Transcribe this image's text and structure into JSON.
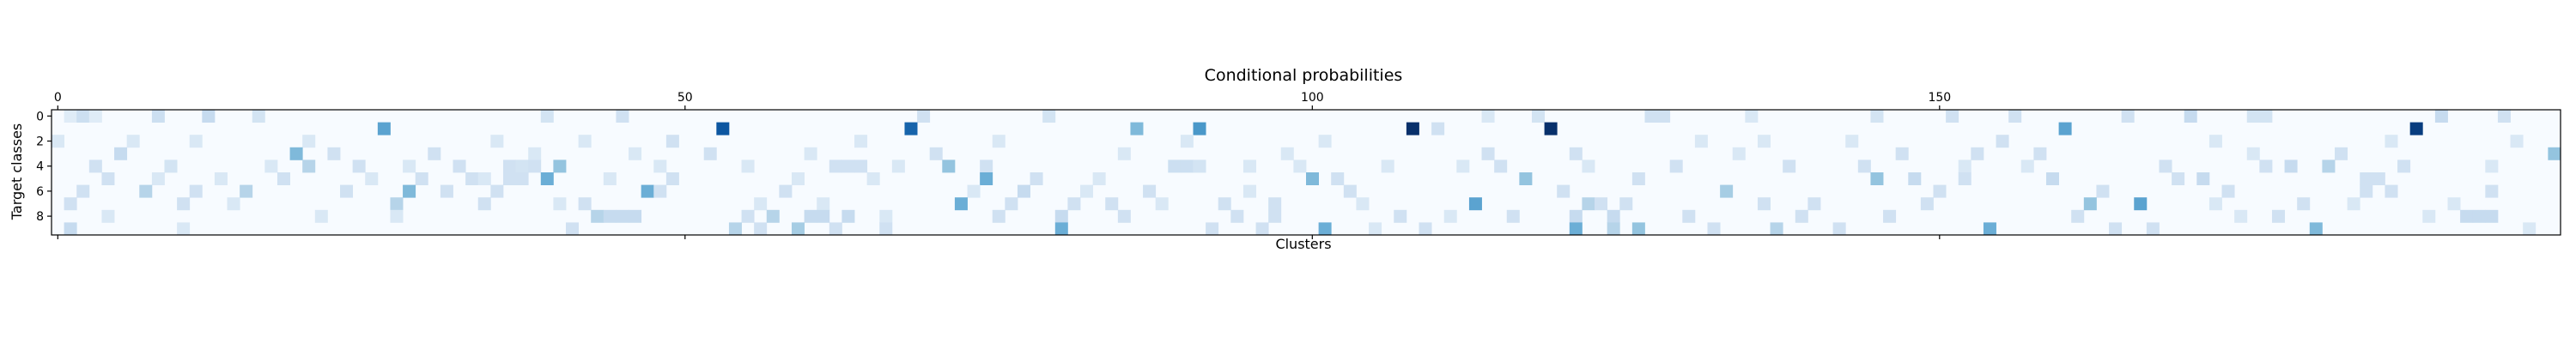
{
  "chart_data": {
    "type": "heatmap",
    "title": "Conditional probabilities",
    "xlabel": "Clusters",
    "ylabel": "Target classes",
    "x_ticks_top": [
      "0",
      "50",
      "100",
      "150"
    ],
    "x_tick_values": [
      0,
      50,
      100,
      150
    ],
    "y_ticks": [
      "0",
      "2",
      "4",
      "6",
      "8"
    ],
    "y_tick_values": [
      0,
      2,
      4,
      6,
      8
    ],
    "n_columns": 200,
    "n_rows": 10,
    "colormap": [
      "#f7fbff",
      "#deebf7",
      "#c6dbef",
      "#9ecae1",
      "#6baed6",
      "#4292c6",
      "#2171b5",
      "#08519c",
      "#08306b"
    ],
    "cells": [
      {
        "x": 1,
        "y": 0,
        "v": 0.12
      },
      {
        "x": 2,
        "y": 0,
        "v": 0.22
      },
      {
        "x": 3,
        "y": 0,
        "v": 0.12
      },
      {
        "x": 8,
        "y": 0,
        "v": 0.22
      },
      {
        "x": 12,
        "y": 0,
        "v": 0.25
      },
      {
        "x": 16,
        "y": 0,
        "v": 0.18
      },
      {
        "x": 39,
        "y": 0,
        "v": 0.18
      },
      {
        "x": 45,
        "y": 0,
        "v": 0.2
      },
      {
        "x": 69,
        "y": 0,
        "v": 0.2
      },
      {
        "x": 79,
        "y": 0,
        "v": 0.18
      },
      {
        "x": 114,
        "y": 0,
        "v": 0.15
      },
      {
        "x": 118,
        "y": 0,
        "v": 0.18
      },
      {
        "x": 127,
        "y": 0,
        "v": 0.2
      },
      {
        "x": 128,
        "y": 0,
        "v": 0.2
      },
      {
        "x": 135,
        "y": 0,
        "v": 0.15
      },
      {
        "x": 145,
        "y": 0,
        "v": 0.18
      },
      {
        "x": 151,
        "y": 0,
        "v": 0.2
      },
      {
        "x": 156,
        "y": 0,
        "v": 0.2
      },
      {
        "x": 165,
        "y": 0,
        "v": 0.2
      },
      {
        "x": 170,
        "y": 0,
        "v": 0.25
      },
      {
        "x": 175,
        "y": 0,
        "v": 0.18
      },
      {
        "x": 176,
        "y": 0,
        "v": 0.18
      },
      {
        "x": 190,
        "y": 0,
        "v": 0.25
      },
      {
        "x": 195,
        "y": 0,
        "v": 0.2
      },
      {
        "x": 26,
        "y": 1,
        "v": 0.55
      },
      {
        "x": 53,
        "y": 1,
        "v": 0.85
      },
      {
        "x": 68,
        "y": 1,
        "v": 0.8
      },
      {
        "x": 86,
        "y": 1,
        "v": 0.45
      },
      {
        "x": 91,
        "y": 1,
        "v": 0.6
      },
      {
        "x": 108,
        "y": 1,
        "v": 1.0
      },
      {
        "x": 110,
        "y": 1,
        "v": 0.2
      },
      {
        "x": 119,
        "y": 1,
        "v": 1.0
      },
      {
        "x": 160,
        "y": 1,
        "v": 0.55
      },
      {
        "x": 188,
        "y": 1,
        "v": 0.95
      },
      {
        "x": 0,
        "y": 2,
        "v": 0.15
      },
      {
        "x": 6,
        "y": 2,
        "v": 0.15
      },
      {
        "x": 11,
        "y": 2,
        "v": 0.15
      },
      {
        "x": 20,
        "y": 2,
        "v": 0.15
      },
      {
        "x": 35,
        "y": 2,
        "v": 0.15
      },
      {
        "x": 42,
        "y": 2,
        "v": 0.15
      },
      {
        "x": 49,
        "y": 2,
        "v": 0.2
      },
      {
        "x": 64,
        "y": 2,
        "v": 0.15
      },
      {
        "x": 75,
        "y": 2,
        "v": 0.15
      },
      {
        "x": 90,
        "y": 2,
        "v": 0.15
      },
      {
        "x": 101,
        "y": 2,
        "v": 0.15
      },
      {
        "x": 131,
        "y": 2,
        "v": 0.15
      },
      {
        "x": 136,
        "y": 2,
        "v": 0.15
      },
      {
        "x": 143,
        "y": 2,
        "v": 0.15
      },
      {
        "x": 155,
        "y": 2,
        "v": 0.2
      },
      {
        "x": 172,
        "y": 2,
        "v": 0.15
      },
      {
        "x": 186,
        "y": 2,
        "v": 0.15
      },
      {
        "x": 196,
        "y": 2,
        "v": 0.15
      },
      {
        "x": 5,
        "y": 3,
        "v": 0.25
      },
      {
        "x": 19,
        "y": 3,
        "v": 0.45
      },
      {
        "x": 22,
        "y": 3,
        "v": 0.2
      },
      {
        "x": 30,
        "y": 3,
        "v": 0.2
      },
      {
        "x": 38,
        "y": 3,
        "v": 0.15
      },
      {
        "x": 46,
        "y": 3,
        "v": 0.15
      },
      {
        "x": 52,
        "y": 3,
        "v": 0.2
      },
      {
        "x": 60,
        "y": 3,
        "v": 0.15
      },
      {
        "x": 70,
        "y": 3,
        "v": 0.2
      },
      {
        "x": 85,
        "y": 3,
        "v": 0.15
      },
      {
        "x": 98,
        "y": 3,
        "v": 0.15
      },
      {
        "x": 114,
        "y": 3,
        "v": 0.2
      },
      {
        "x": 121,
        "y": 3,
        "v": 0.2
      },
      {
        "x": 134,
        "y": 3,
        "v": 0.15
      },
      {
        "x": 147,
        "y": 3,
        "v": 0.2
      },
      {
        "x": 153,
        "y": 3,
        "v": 0.2
      },
      {
        "x": 158,
        "y": 3,
        "v": 0.2
      },
      {
        "x": 175,
        "y": 3,
        "v": 0.15
      },
      {
        "x": 182,
        "y": 3,
        "v": 0.2
      },
      {
        "x": 199,
        "y": 3,
        "v": 0.4
      },
      {
        "x": 3,
        "y": 4,
        "v": 0.2
      },
      {
        "x": 9,
        "y": 4,
        "v": 0.18
      },
      {
        "x": 17,
        "y": 4,
        "v": 0.15
      },
      {
        "x": 20,
        "y": 4,
        "v": 0.3
      },
      {
        "x": 24,
        "y": 4,
        "v": 0.2
      },
      {
        "x": 28,
        "y": 4,
        "v": 0.15
      },
      {
        "x": 32,
        "y": 4,
        "v": 0.2
      },
      {
        "x": 36,
        "y": 4,
        "v": 0.2
      },
      {
        "x": 37,
        "y": 4,
        "v": 0.18
      },
      {
        "x": 38,
        "y": 4,
        "v": 0.2
      },
      {
        "x": 40,
        "y": 4,
        "v": 0.4
      },
      {
        "x": 48,
        "y": 4,
        "v": 0.15
      },
      {
        "x": 55,
        "y": 4,
        "v": 0.15
      },
      {
        "x": 62,
        "y": 4,
        "v": 0.2
      },
      {
        "x": 63,
        "y": 4,
        "v": 0.2
      },
      {
        "x": 64,
        "y": 4,
        "v": 0.2
      },
      {
        "x": 67,
        "y": 4,
        "v": 0.15
      },
      {
        "x": 71,
        "y": 4,
        "v": 0.4
      },
      {
        "x": 74,
        "y": 4,
        "v": 0.2
      },
      {
        "x": 89,
        "y": 4,
        "v": 0.22
      },
      {
        "x": 90,
        "y": 4,
        "v": 0.22
      },
      {
        "x": 91,
        "y": 4,
        "v": 0.18
      },
      {
        "x": 95,
        "y": 4,
        "v": 0.15
      },
      {
        "x": 99,
        "y": 4,
        "v": 0.15
      },
      {
        "x": 106,
        "y": 4,
        "v": 0.15
      },
      {
        "x": 112,
        "y": 4,
        "v": 0.15
      },
      {
        "x": 115,
        "y": 4,
        "v": 0.2
      },
      {
        "x": 122,
        "y": 4,
        "v": 0.15
      },
      {
        "x": 129,
        "y": 4,
        "v": 0.2
      },
      {
        "x": 138,
        "y": 4,
        "v": 0.2
      },
      {
        "x": 144,
        "y": 4,
        "v": 0.2
      },
      {
        "x": 152,
        "y": 4,
        "v": 0.15
      },
      {
        "x": 157,
        "y": 4,
        "v": 0.15
      },
      {
        "x": 168,
        "y": 4,
        "v": 0.2
      },
      {
        "x": 176,
        "y": 4,
        "v": 0.2
      },
      {
        "x": 178,
        "y": 4,
        "v": 0.25
      },
      {
        "x": 181,
        "y": 4,
        "v": 0.3
      },
      {
        "x": 187,
        "y": 4,
        "v": 0.2
      },
      {
        "x": 194,
        "y": 4,
        "v": 0.15
      },
      {
        "x": 4,
        "y": 5,
        "v": 0.2
      },
      {
        "x": 8,
        "y": 5,
        "v": 0.15
      },
      {
        "x": 13,
        "y": 5,
        "v": 0.15
      },
      {
        "x": 18,
        "y": 5,
        "v": 0.2
      },
      {
        "x": 25,
        "y": 5,
        "v": 0.15
      },
      {
        "x": 29,
        "y": 5,
        "v": 0.2
      },
      {
        "x": 33,
        "y": 5,
        "v": 0.2
      },
      {
        "x": 34,
        "y": 5,
        "v": 0.15
      },
      {
        "x": 36,
        "y": 5,
        "v": 0.2
      },
      {
        "x": 37,
        "y": 5,
        "v": 0.2
      },
      {
        "x": 39,
        "y": 5,
        "v": 0.5
      },
      {
        "x": 44,
        "y": 5,
        "v": 0.15
      },
      {
        "x": 49,
        "y": 5,
        "v": 0.2
      },
      {
        "x": 59,
        "y": 5,
        "v": 0.15
      },
      {
        "x": 65,
        "y": 5,
        "v": 0.15
      },
      {
        "x": 74,
        "y": 5,
        "v": 0.5
      },
      {
        "x": 78,
        "y": 5,
        "v": 0.2
      },
      {
        "x": 83,
        "y": 5,
        "v": 0.15
      },
      {
        "x": 100,
        "y": 5,
        "v": 0.45
      },
      {
        "x": 102,
        "y": 5,
        "v": 0.2
      },
      {
        "x": 117,
        "y": 5,
        "v": 0.4
      },
      {
        "x": 126,
        "y": 5,
        "v": 0.2
      },
      {
        "x": 145,
        "y": 5,
        "v": 0.4
      },
      {
        "x": 148,
        "y": 5,
        "v": 0.25
      },
      {
        "x": 152,
        "y": 5,
        "v": 0.2
      },
      {
        "x": 159,
        "y": 5,
        "v": 0.25
      },
      {
        "x": 169,
        "y": 5,
        "v": 0.2
      },
      {
        "x": 171,
        "y": 5,
        "v": 0.25
      },
      {
        "x": 184,
        "y": 5,
        "v": 0.2
      },
      {
        "x": 185,
        "y": 5,
        "v": 0.2
      },
      {
        "x": 2,
        "y": 6,
        "v": 0.2
      },
      {
        "x": 7,
        "y": 6,
        "v": 0.3
      },
      {
        "x": 11,
        "y": 6,
        "v": 0.2
      },
      {
        "x": 15,
        "y": 6,
        "v": 0.3
      },
      {
        "x": 23,
        "y": 6,
        "v": 0.2
      },
      {
        "x": 28,
        "y": 6,
        "v": 0.45
      },
      {
        "x": 31,
        "y": 6,
        "v": 0.2
      },
      {
        "x": 35,
        "y": 6,
        "v": 0.2
      },
      {
        "x": 47,
        "y": 6,
        "v": 0.5
      },
      {
        "x": 48,
        "y": 6,
        "v": 0.2
      },
      {
        "x": 58,
        "y": 6,
        "v": 0.2
      },
      {
        "x": 73,
        "y": 6,
        "v": 0.15
      },
      {
        "x": 77,
        "y": 6,
        "v": 0.25
      },
      {
        "x": 82,
        "y": 6,
        "v": 0.15
      },
      {
        "x": 87,
        "y": 6,
        "v": 0.2
      },
      {
        "x": 95,
        "y": 6,
        "v": 0.15
      },
      {
        "x": 103,
        "y": 6,
        "v": 0.2
      },
      {
        "x": 120,
        "y": 6,
        "v": 0.2
      },
      {
        "x": 133,
        "y": 6,
        "v": 0.35
      },
      {
        "x": 150,
        "y": 6,
        "v": 0.2
      },
      {
        "x": 163,
        "y": 6,
        "v": 0.2
      },
      {
        "x": 173,
        "y": 6,
        "v": 0.2
      },
      {
        "x": 184,
        "y": 6,
        "v": 0.2
      },
      {
        "x": 186,
        "y": 6,
        "v": 0.2
      },
      {
        "x": 194,
        "y": 6,
        "v": 0.2
      },
      {
        "x": 1,
        "y": 7,
        "v": 0.2
      },
      {
        "x": 10,
        "y": 7,
        "v": 0.2
      },
      {
        "x": 14,
        "y": 7,
        "v": 0.15
      },
      {
        "x": 27,
        "y": 7,
        "v": 0.3
      },
      {
        "x": 34,
        "y": 7,
        "v": 0.2
      },
      {
        "x": 40,
        "y": 7,
        "v": 0.15
      },
      {
        "x": 42,
        "y": 7,
        "v": 0.2
      },
      {
        "x": 56,
        "y": 7,
        "v": 0.15
      },
      {
        "x": 61,
        "y": 7,
        "v": 0.15
      },
      {
        "x": 72,
        "y": 7,
        "v": 0.5
      },
      {
        "x": 76,
        "y": 7,
        "v": 0.2
      },
      {
        "x": 81,
        "y": 7,
        "v": 0.2
      },
      {
        "x": 84,
        "y": 7,
        "v": 0.2
      },
      {
        "x": 88,
        "y": 7,
        "v": 0.15
      },
      {
        "x": 93,
        "y": 7,
        "v": 0.2
      },
      {
        "x": 97,
        "y": 7,
        "v": 0.2
      },
      {
        "x": 104,
        "y": 7,
        "v": 0.15
      },
      {
        "x": 113,
        "y": 7,
        "v": 0.55
      },
      {
        "x": 122,
        "y": 7,
        "v": 0.3
      },
      {
        "x": 123,
        "y": 7,
        "v": 0.2
      },
      {
        "x": 125,
        "y": 7,
        "v": 0.2
      },
      {
        "x": 136,
        "y": 7,
        "v": 0.2
      },
      {
        "x": 140,
        "y": 7,
        "v": 0.2
      },
      {
        "x": 149,
        "y": 7,
        "v": 0.2
      },
      {
        "x": 162,
        "y": 7,
        "v": 0.4
      },
      {
        "x": 166,
        "y": 7,
        "v": 0.55
      },
      {
        "x": 172,
        "y": 7,
        "v": 0.15
      },
      {
        "x": 179,
        "y": 7,
        "v": 0.2
      },
      {
        "x": 183,
        "y": 7,
        "v": 0.15
      },
      {
        "x": 191,
        "y": 7,
        "v": 0.15
      },
      {
        "x": 4,
        "y": 8,
        "v": 0.15
      },
      {
        "x": 21,
        "y": 8,
        "v": 0.15
      },
      {
        "x": 27,
        "y": 8,
        "v": 0.15
      },
      {
        "x": 43,
        "y": 8,
        "v": 0.3
      },
      {
        "x": 44,
        "y": 8,
        "v": 0.25
      },
      {
        "x": 45,
        "y": 8,
        "v": 0.25
      },
      {
        "x": 46,
        "y": 8,
        "v": 0.25
      },
      {
        "x": 55,
        "y": 8,
        "v": 0.2
      },
      {
        "x": 57,
        "y": 8,
        "v": 0.3
      },
      {
        "x": 60,
        "y": 8,
        "v": 0.25
      },
      {
        "x": 61,
        "y": 8,
        "v": 0.25
      },
      {
        "x": 63,
        "y": 8,
        "v": 0.25
      },
      {
        "x": 66,
        "y": 8,
        "v": 0.15
      },
      {
        "x": 75,
        "y": 8,
        "v": 0.2
      },
      {
        "x": 80,
        "y": 8,
        "v": 0.25
      },
      {
        "x": 85,
        "y": 8,
        "v": 0.2
      },
      {
        "x": 94,
        "y": 8,
        "v": 0.2
      },
      {
        "x": 97,
        "y": 8,
        "v": 0.2
      },
      {
        "x": 107,
        "y": 8,
        "v": 0.2
      },
      {
        "x": 111,
        "y": 8,
        "v": 0.15
      },
      {
        "x": 116,
        "y": 8,
        "v": 0.2
      },
      {
        "x": 121,
        "y": 8,
        "v": 0.25
      },
      {
        "x": 124,
        "y": 8,
        "v": 0.25
      },
      {
        "x": 130,
        "y": 8,
        "v": 0.2
      },
      {
        "x": 139,
        "y": 8,
        "v": 0.2
      },
      {
        "x": 146,
        "y": 8,
        "v": 0.2
      },
      {
        "x": 161,
        "y": 8,
        "v": 0.2
      },
      {
        "x": 174,
        "y": 8,
        "v": 0.15
      },
      {
        "x": 177,
        "y": 8,
        "v": 0.2
      },
      {
        "x": 189,
        "y": 8,
        "v": 0.15
      },
      {
        "x": 192,
        "y": 8,
        "v": 0.25
      },
      {
        "x": 193,
        "y": 8,
        "v": 0.25
      },
      {
        "x": 194,
        "y": 8,
        "v": 0.25
      },
      {
        "x": 1,
        "y": 9,
        "v": 0.25
      },
      {
        "x": 10,
        "y": 9,
        "v": 0.15
      },
      {
        "x": 41,
        "y": 9,
        "v": 0.2
      },
      {
        "x": 54,
        "y": 9,
        "v": 0.3
      },
      {
        "x": 56,
        "y": 9,
        "v": 0.2
      },
      {
        "x": 59,
        "y": 9,
        "v": 0.35
      },
      {
        "x": 62,
        "y": 9,
        "v": 0.2
      },
      {
        "x": 66,
        "y": 9,
        "v": 0.2
      },
      {
        "x": 80,
        "y": 9,
        "v": 0.5
      },
      {
        "x": 92,
        "y": 9,
        "v": 0.2
      },
      {
        "x": 96,
        "y": 9,
        "v": 0.2
      },
      {
        "x": 101,
        "y": 9,
        "v": 0.5
      },
      {
        "x": 105,
        "y": 9,
        "v": 0.15
      },
      {
        "x": 109,
        "y": 9,
        "v": 0.2
      },
      {
        "x": 121,
        "y": 9,
        "v": 0.5
      },
      {
        "x": 124,
        "y": 9,
        "v": 0.3
      },
      {
        "x": 126,
        "y": 9,
        "v": 0.4
      },
      {
        "x": 132,
        "y": 9,
        "v": 0.2
      },
      {
        "x": 137,
        "y": 9,
        "v": 0.3
      },
      {
        "x": 142,
        "y": 9,
        "v": 0.2
      },
      {
        "x": 154,
        "y": 9,
        "v": 0.5
      },
      {
        "x": 164,
        "y": 9,
        "v": 0.2
      },
      {
        "x": 167,
        "y": 9,
        "v": 0.2
      },
      {
        "x": 180,
        "y": 9,
        "v": 0.45
      },
      {
        "x": 197,
        "y": 9,
        "v": 0.15
      }
    ]
  }
}
